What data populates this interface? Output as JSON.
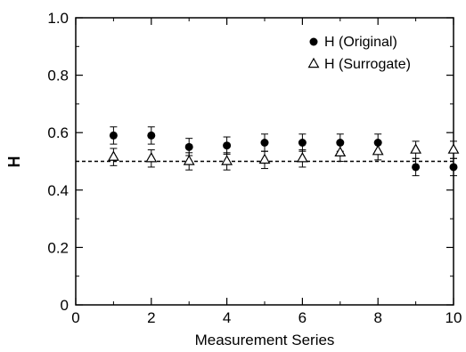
{
  "chart_data": {
    "type": "scatter",
    "title": "",
    "xlabel": "Measurement Series",
    "ylabel": "H",
    "xlim": [
      0,
      10
    ],
    "ylim": [
      0,
      1.0
    ],
    "x_ticks": [
      0,
      2,
      4,
      6,
      8,
      10
    ],
    "y_ticks": [
      0,
      0.2,
      0.4,
      0.6,
      0.8,
      1.0
    ],
    "y_tick_labels": [
      "0",
      "0.2",
      "0.4",
      "0.6",
      "0.8",
      "1.0"
    ],
    "grid": false,
    "legend_position": "top-right",
    "reference_line": {
      "y": 0.5,
      "style": "dashed"
    },
    "series": [
      {
        "name": "H (Original)",
        "marker": "filled-circle",
        "x": [
          1,
          2,
          3,
          4,
          5,
          6,
          7,
          8,
          9,
          10
        ],
        "y": [
          0.59,
          0.59,
          0.55,
          0.555,
          0.565,
          0.565,
          0.565,
          0.565,
          0.48,
          0.48
        ],
        "error": [
          0.03,
          0.03,
          0.03,
          0.03,
          0.03,
          0.03,
          0.03,
          0.03,
          0.03,
          0.03
        ]
      },
      {
        "name": "H (Surrogate)",
        "marker": "open-triangle",
        "x": [
          1,
          2,
          3,
          4,
          5,
          6,
          7,
          8,
          9,
          10
        ],
        "y": [
          0.515,
          0.51,
          0.5,
          0.5,
          0.505,
          0.51,
          0.53,
          0.535,
          0.54,
          0.54
        ],
        "error": [
          0.03,
          0.03,
          0.03,
          0.03,
          0.03,
          0.03,
          0.03,
          0.03,
          0.03,
          0.03
        ]
      }
    ]
  }
}
